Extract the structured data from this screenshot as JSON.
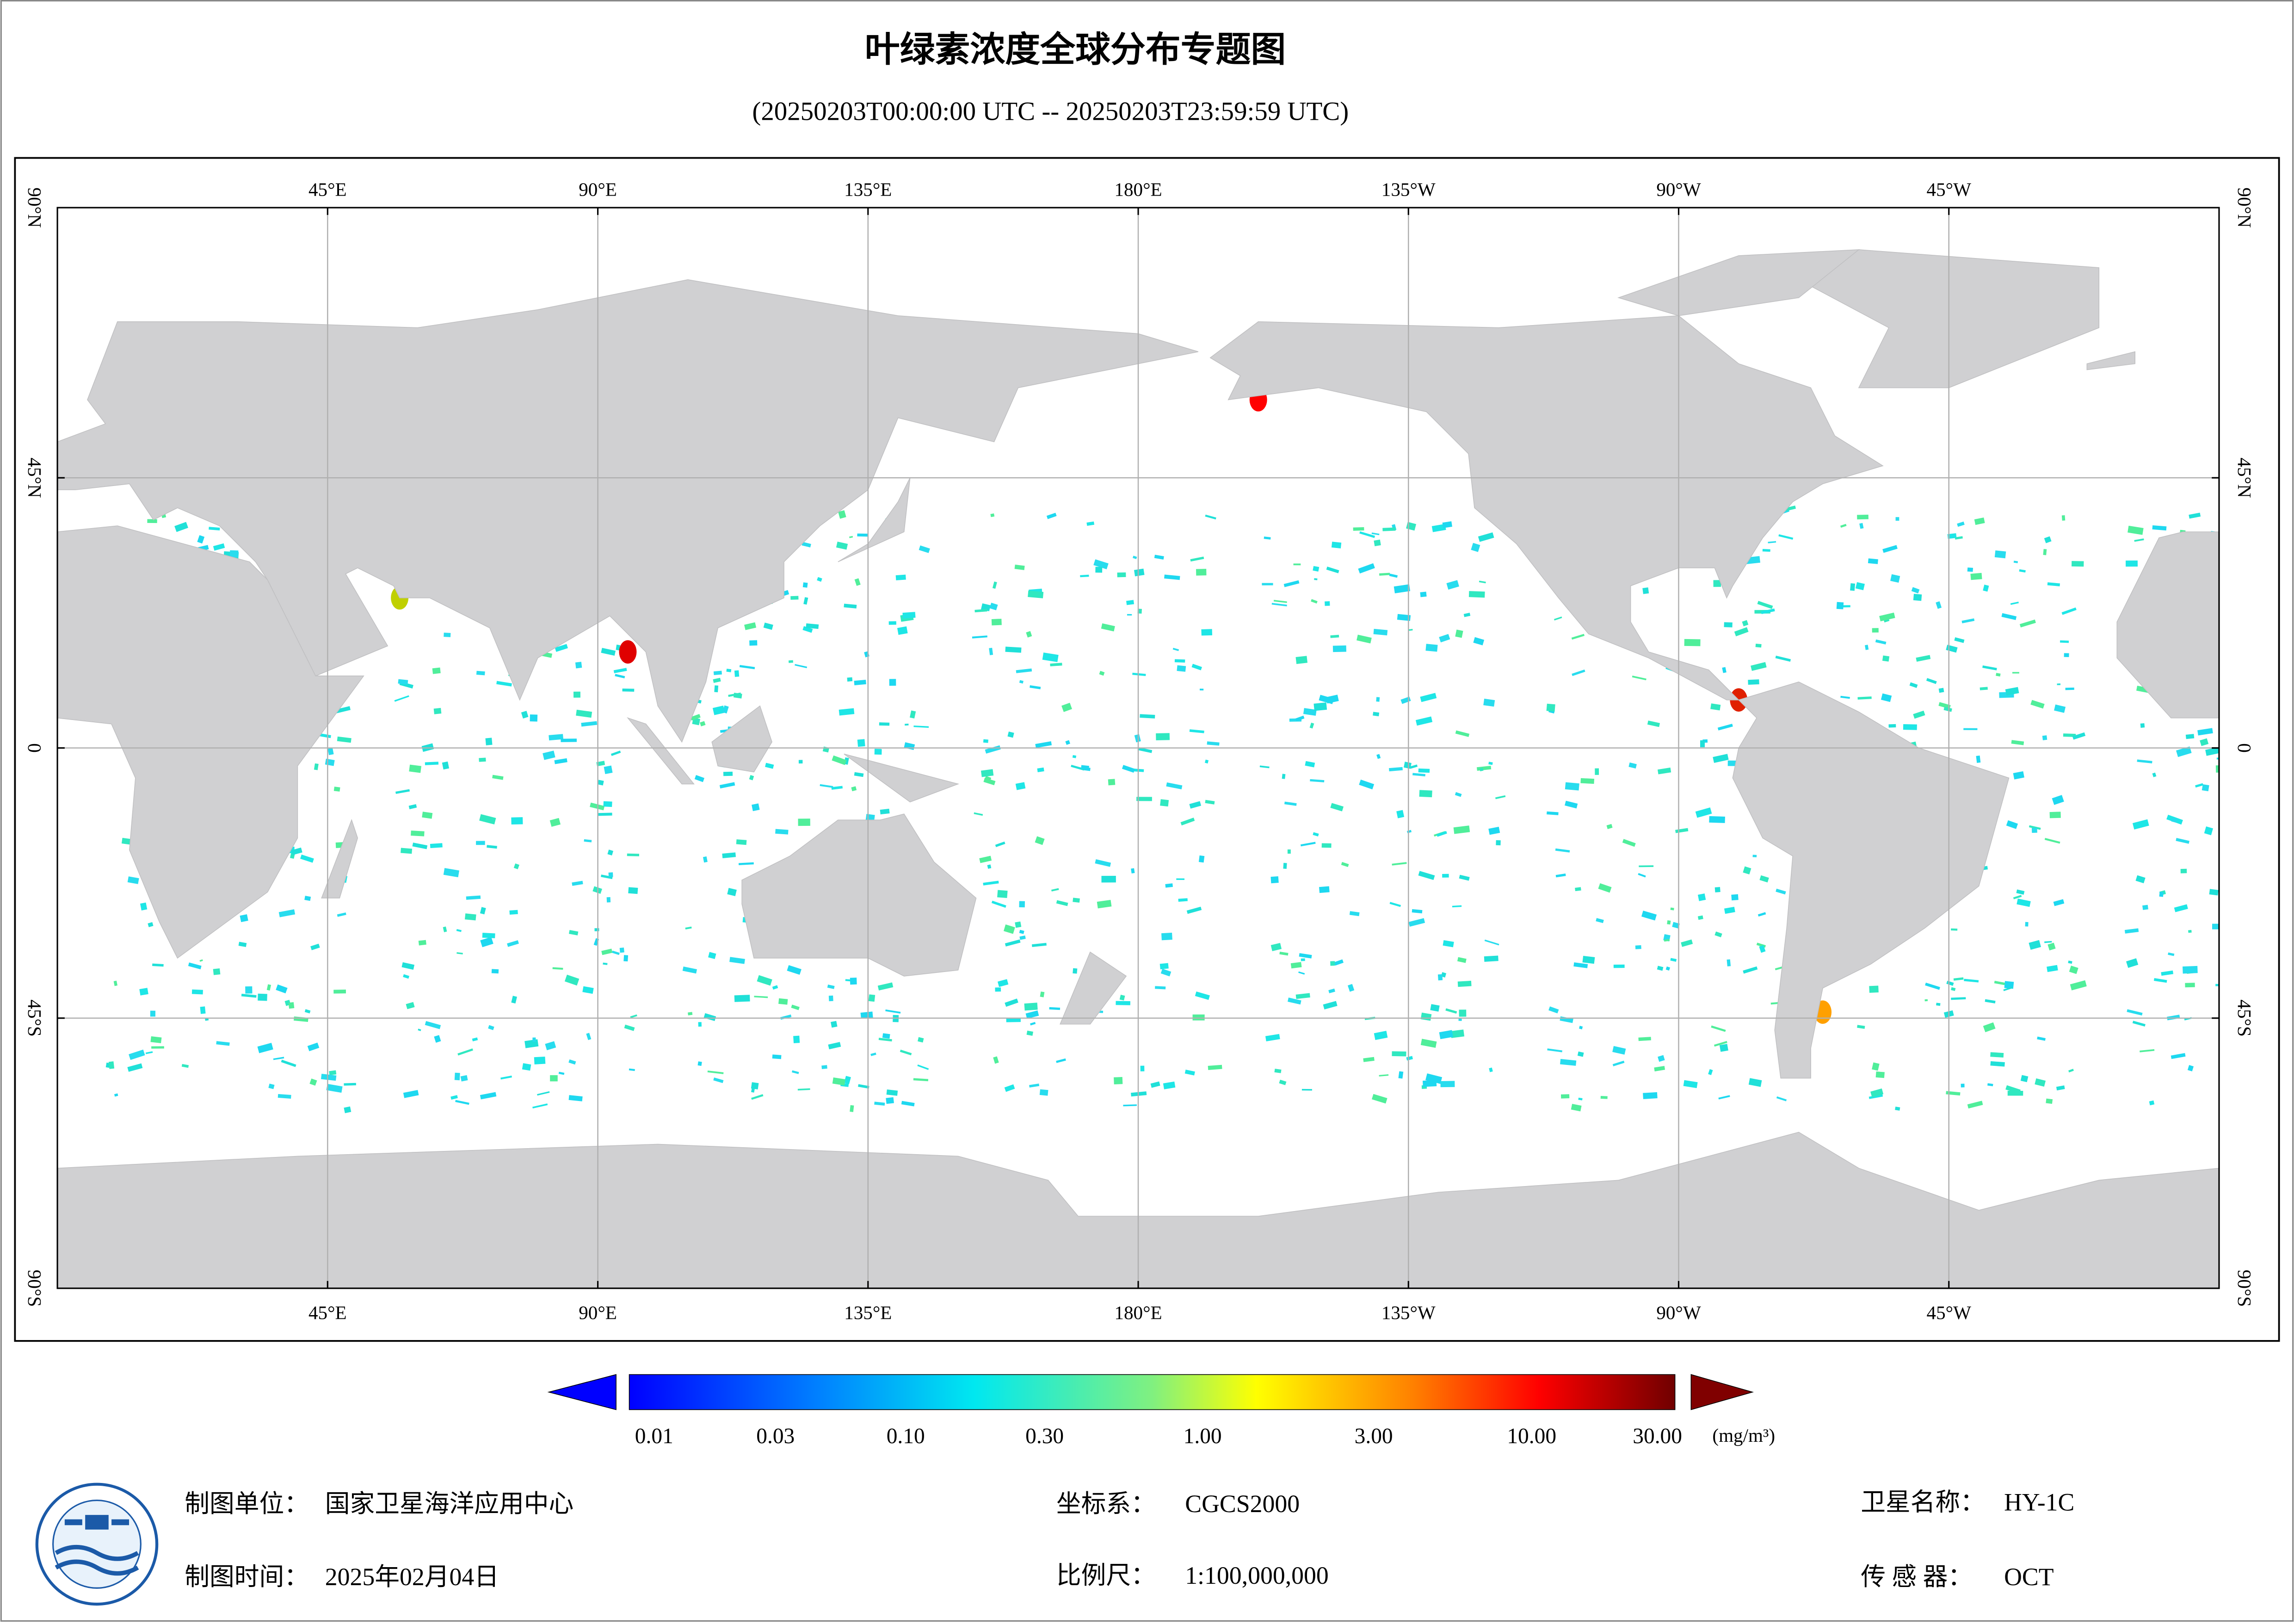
{
  "header": {
    "title": "叶绿素浓度全球分布专题图",
    "subtitle": "(20250203T00:00:00 UTC -- 20250203T23:59:59 UTC)"
  },
  "map": {
    "lon_labels": [
      "45°E",
      "90°E",
      "135°E",
      "180°E",
      "135°W",
      "90°W",
      "45°W"
    ],
    "lat_labels": [
      "90°N",
      "45°N",
      "0",
      "45°S",
      "90°S"
    ]
  },
  "colorbar": {
    "ticks": [
      "0.01",
      "0.03",
      "0.10",
      "0.30",
      "1.00",
      "3.00",
      "10.00",
      "30.00"
    ],
    "unit": "(mg/m³)"
  },
  "footer": {
    "unit_label": "制图单位：",
    "unit_value": "国家卫星海洋应用中心",
    "time_label": "制图时间：",
    "time_value": "2025年02月04日",
    "crs_label": "坐标系：",
    "crs_value": "CGCS2000",
    "scale_label": "比例尺：",
    "scale_value": "1:100,000,000",
    "sat_label": "卫星名称：",
    "sat_value": "HY-1C",
    "sensor_label": "传 感 器：",
    "sensor_value": "OCT"
  }
}
